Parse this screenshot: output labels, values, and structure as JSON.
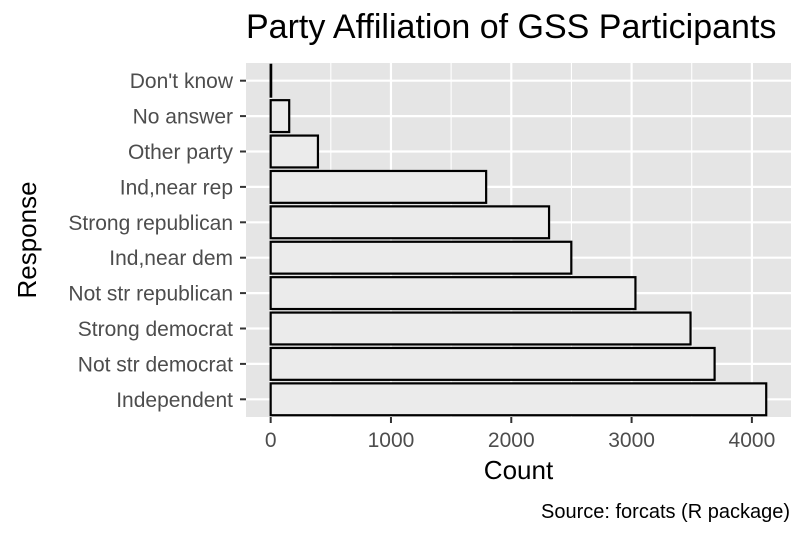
{
  "chart_data": {
    "type": "bar",
    "orientation": "horizontal",
    "title": "Party Affiliation of GSS Participants",
    "xlabel": "Count",
    "ylabel": "Response",
    "caption": "Source: forcats (R package)",
    "categories": [
      "Don't know",
      "No answer",
      "Other party",
      "Ind,near rep",
      "Strong republican",
      "Ind,near dem",
      "Not str republican",
      "Strong democrat",
      "Not str democrat",
      "Independent"
    ],
    "values": [
      1,
      154,
      393,
      1791,
      2314,
      2499,
      3032,
      3490,
      3690,
      4119
    ],
    "xticks": [
      0,
      1000,
      2000,
      3000,
      4000
    ],
    "xlim": [
      -205,
      4325
    ],
    "grid": true,
    "legend": "none",
    "colors": {
      "panel_background": "#e5e5e5",
      "gridline": "#ffffff",
      "bar_fill": "#ebebeb",
      "bar_stroke": "#000000",
      "tick_text": "#4d4d4d"
    }
  }
}
